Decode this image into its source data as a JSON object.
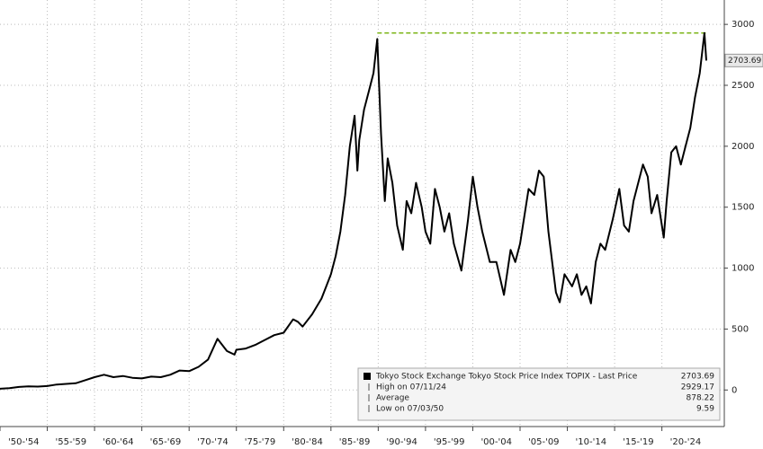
{
  "chart_data": {
    "type": "line",
    "series": [
      {
        "name": "Tokyo Stock Exchange Tokyo Stock Price Index TOPIX - Last Price",
        "color": "#000000",
        "values": [
          10,
          15,
          25,
          30,
          28,
          32,
          45,
          50,
          55,
          80,
          105,
          125,
          105,
          115,
          100,
          95,
          110,
          105,
          125,
          160,
          155,
          190,
          250,
          420,
          370,
          320,
          290,
          330,
          340,
          370,
          410,
          450,
          470,
          580,
          560,
          520,
          620,
          750,
          850,
          950,
          1100,
          1300,
          1600,
          2000,
          2250,
          1800,
          2050,
          2300,
          2450,
          2600,
          2880,
          2100,
          1550,
          1900,
          1700,
          1350,
          1150,
          1550,
          1450,
          1700,
          1500,
          1300,
          1200,
          1650,
          1500,
          1300,
          1450,
          1200,
          980,
          1400,
          1750,
          1500,
          1300,
          1050,
          1050,
          780,
          1150,
          1050,
          1200,
          1650,
          1600,
          1800,
          1750,
          1300,
          800,
          720,
          950,
          850,
          950,
          780,
          850,
          710,
          1050,
          1200,
          1150,
          1400,
          1650,
          1350,
          1300,
          1550,
          1850,
          1750,
          1450,
          1600,
          1250,
          1550,
          1950,
          2000,
          1850,
          2000,
          2150,
          2400,
          2600,
          2929.17,
          2703.69
        ]
      }
    ],
    "x": [
      1950,
      1951,
      1952,
      1953,
      1954,
      1955,
      1956,
      1957,
      1958,
      1959,
      1960,
      1961,
      1962,
      1963,
      1964,
      1965,
      1966,
      1967,
      1968,
      1969,
      1970,
      1971,
      1972,
      1973,
      1973.5,
      1974,
      1974.8,
      1975,
      1976,
      1977,
      1978,
      1979,
      1980,
      1981,
      1981.5,
      1982,
      1983,
      1984,
      1984.5,
      1985,
      1985.5,
      1986,
      1986.5,
      1987,
      1987.5,
      1987.8,
      1988,
      1988.5,
      1989,
      1989.5,
      1989.9,
      1990.3,
      1990.7,
      1991,
      1991.5,
      1992,
      1992.6,
      1993,
      1993.5,
      1994,
      1994.6,
      1995,
      1995.5,
      1996,
      1996.5,
      1997,
      1997.5,
      1998,
      1998.8,
      1999.5,
      2000,
      2000.5,
      2001,
      2001.8,
      2002.5,
      2003.3,
      2004,
      2004.5,
      2005,
      2005.9,
      2006.5,
      2007,
      2007.5,
      2008,
      2008.8,
      2009.2,
      2009.7,
      2010.5,
      2011,
      2011.5,
      2012,
      2012.5,
      2013,
      2013.5,
      2014,
      2014.8,
      2015.5,
      2016,
      2016.5,
      2017,
      2018,
      2018.5,
      2018.9,
      2019.5,
      2020.2,
      2020.5,
      2021,
      2021.5,
      2022,
      2022.5,
      2023,
      2023.5,
      2024,
      2024.5,
      2024.7
    ],
    "xlim": [
      1950,
      2026.6
    ],
    "xticks": [
      {
        "value": 1950,
        "label": "'50-'54"
      },
      {
        "value": 1955,
        "label": "'55-'59"
      },
      {
        "value": 1960,
        "label": "'60-'64"
      },
      {
        "value": 1965,
        "label": "'65-'69"
      },
      {
        "value": 1970,
        "label": "'70-'74"
      },
      {
        "value": 1975,
        "label": "'75-'79"
      },
      {
        "value": 1980,
        "label": "'80-'84"
      },
      {
        "value": 1985,
        "label": "'85-'89"
      },
      {
        "value": 1990,
        "label": "'90-'94"
      },
      {
        "value": 1995,
        "label": "'95-'99"
      },
      {
        "value": 2000,
        "label": "'00-'04"
      },
      {
        "value": 2005,
        "label": "'05-'09"
      },
      {
        "value": 2010,
        "label": "'10-'14"
      },
      {
        "value": 2015,
        "label": "'15-'19"
      },
      {
        "value": 2020,
        "label": "'20-'24"
      }
    ],
    "ylim": [
      -300,
      3200
    ],
    "yticks": [
      0,
      500,
      1000,
      1500,
      2000,
      2500,
      3000
    ],
    "grid": true,
    "legend": "bottom-right",
    "last_price": 2703.69,
    "high_line_color": "#7cb518",
    "stats": [
      {
        "label": "High on 07/11/24",
        "value": 2929.17
      },
      {
        "label": "Average",
        "value": 878.22
      },
      {
        "label": "Low on 07/03/50",
        "value": 9.59
      }
    ]
  }
}
